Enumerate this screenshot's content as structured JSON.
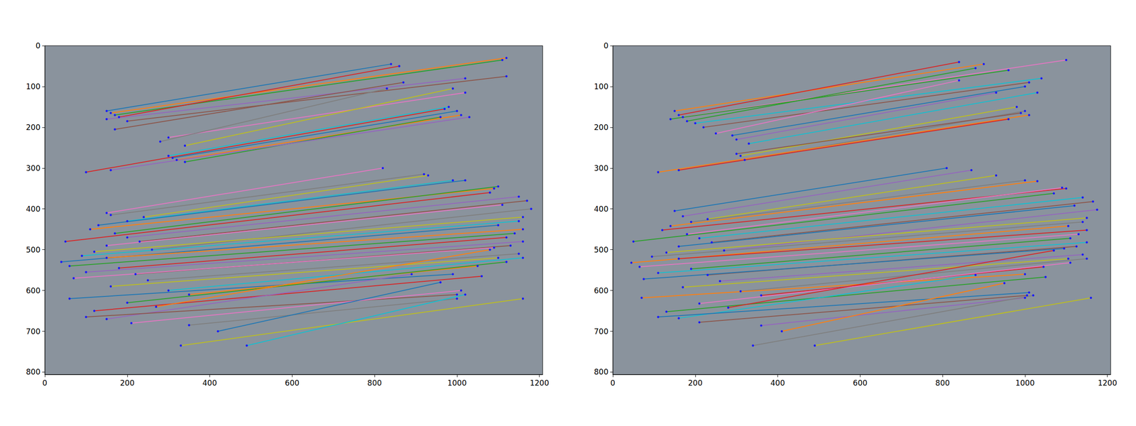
{
  "chart_data": [
    {
      "type": "line",
      "marker": "circle",
      "grid": false,
      "xlim": [
        0,
        1208
      ],
      "ylim": [
        806,
        0
      ],
      "xticks": [
        0,
        200,
        400,
        600,
        800,
        1000,
        1200
      ],
      "yticks": [
        0,
        100,
        200,
        300,
        400,
        500,
        600,
        700,
        800
      ],
      "segments": [
        [
          150,
          160,
          840,
          45
        ],
        [
          160,
          165,
          1120,
          30
        ],
        [
          170,
          170,
          1110,
          35
        ],
        [
          180,
          175,
          860,
          50
        ],
        [
          150,
          180,
          1020,
          80
        ],
        [
          200,
          185,
          1120,
          75
        ],
        [
          300,
          225,
          1020,
          115
        ],
        [
          280,
          235,
          830,
          105
        ],
        [
          340,
          245,
          990,
          105
        ],
        [
          300,
          270,
          980,
          150
        ],
        [
          310,
          275,
          1000,
          160
        ],
        [
          320,
          280,
          1010,
          170
        ],
        [
          340,
          285,
          960,
          175
        ],
        [
          100,
          310,
          970,
          155
        ],
        [
          160,
          305,
          1030,
          175
        ],
        [
          170,
          205,
          870,
          90
        ],
        [
          150,
          410,
          820,
          300
        ],
        [
          160,
          415,
          920,
          315
        ],
        [
          240,
          420,
          930,
          318
        ],
        [
          200,
          430,
          990,
          330
        ],
        [
          130,
          440,
          1020,
          330
        ],
        [
          110,
          450,
          1090,
          350
        ],
        [
          170,
          460,
          1100,
          345
        ],
        [
          50,
          480,
          1080,
          360
        ],
        [
          200,
          470,
          1150,
          370
        ],
        [
          230,
          480,
          1170,
          380
        ],
        [
          150,
          490,
          1110,
          390
        ],
        [
          260,
          500,
          1180,
          400
        ],
        [
          120,
          505,
          1160,
          420
        ],
        [
          90,
          515,
          1150,
          430
        ],
        [
          40,
          530,
          1100,
          440
        ],
        [
          150,
          520,
          1160,
          450
        ],
        [
          60,
          540,
          1140,
          460
        ],
        [
          180,
          545,
          1120,
          470
        ],
        [
          100,
          555,
          1160,
          480
        ],
        [
          220,
          560,
          1130,
          490
        ],
        [
          70,
          570,
          1090,
          495
        ],
        [
          250,
          575,
          1150,
          510
        ],
        [
          160,
          590,
          1100,
          520
        ],
        [
          300,
          600,
          1160,
          520
        ],
        [
          60,
          620,
          990,
          560
        ],
        [
          350,
          610,
          1050,
          540
        ],
        [
          200,
          630,
          1120,
          530
        ],
        [
          120,
          650,
          1060,
          565
        ],
        [
          150,
          670,
          890,
          560
        ],
        [
          100,
          665,
          1000,
          610
        ],
        [
          210,
          680,
          1010,
          600
        ],
        [
          350,
          685,
          1000,
          620
        ],
        [
          330,
          735,
          1160,
          620
        ],
        [
          490,
          735,
          1020,
          610
        ],
        [
          420,
          700,
          960,
          580
        ],
        [
          270,
          640,
          1080,
          500
        ]
      ],
      "colors": [
        "#1f77b4",
        "#ff7f0e",
        "#2ca02c",
        "#d62728",
        "#9467bd",
        "#8c564b",
        "#e377c2",
        "#7f7f7f",
        "#bcbd22",
        "#17becf",
        "#1f77b4",
        "#ff7f0e",
        "#2ca02c",
        "#d62728",
        "#9467bd",
        "#8c564b",
        "#e377c2",
        "#7f7f7f",
        "#bcbd22",
        "#17becf",
        "#1f77b4",
        "#ff7f0e",
        "#2ca02c",
        "#d62728",
        "#9467bd",
        "#8c564b",
        "#e377c2",
        "#7f7f7f",
        "#bcbd22",
        "#17becf",
        "#1f77b4",
        "#ff7f0e",
        "#2ca02c",
        "#d62728",
        "#9467bd",
        "#8c564b",
        "#e377c2",
        "#7f7f7f",
        "#bcbd22",
        "#17becf",
        "#1f77b4",
        "#ff7f0e",
        "#2ca02c",
        "#d62728",
        "#9467bd",
        "#8c564b",
        "#e377c2",
        "#7f7f7f",
        "#bcbd22",
        "#17becf",
        "#1f77b4",
        "#ff7f0e"
      ]
    },
    {
      "type": "line",
      "marker": "circle",
      "grid": false,
      "xlim": [
        0,
        1208
      ],
      "ylim": [
        806,
        0
      ],
      "xticks": [
        0,
        200,
        400,
        600,
        800,
        1000,
        1200
      ],
      "yticks": [
        0,
        100,
        200,
        300,
        400,
        500,
        600,
        700,
        800
      ],
      "segments": [
        [
          150,
          160,
          900,
          45
        ],
        [
          160,
          170,
          840,
          40
        ],
        [
          170,
          175,
          1100,
          35
        ],
        [
          140,
          180,
          960,
          60
        ],
        [
          200,
          190,
          1040,
          80
        ],
        [
          220,
          200,
          1010,
          90
        ],
        [
          290,
          220,
          1000,
          100
        ],
        [
          300,
          230,
          930,
          115
        ],
        [
          310,
          270,
          980,
          150
        ],
        [
          320,
          280,
          1000,
          160
        ],
        [
          110,
          310,
          1010,
          170
        ],
        [
          160,
          305,
          960,
          180
        ],
        [
          250,
          215,
          840,
          85
        ],
        [
          180,
          185,
          880,
          55
        ],
        [
          330,
          240,
          1030,
          115
        ],
        [
          300,
          265,
          990,
          165
        ],
        [
          150,
          405,
          810,
          300
        ],
        [
          170,
          418,
          870,
          305
        ],
        [
          230,
          425,
          930,
          318
        ],
        [
          190,
          432,
          1000,
          330
        ],
        [
          140,
          442,
          1030,
          332
        ],
        [
          120,
          452,
          1100,
          350
        ],
        [
          180,
          462,
          1090,
          348
        ],
        [
          50,
          480,
          1070,
          362
        ],
        [
          210,
          472,
          1140,
          372
        ],
        [
          240,
          482,
          1165,
          382
        ],
        [
          160,
          492,
          1120,
          392
        ],
        [
          270,
          502,
          1175,
          402
        ],
        [
          130,
          507,
          1150,
          422
        ],
        [
          95,
          517,
          1140,
          432
        ],
        [
          45,
          532,
          1105,
          442
        ],
        [
          160,
          522,
          1150,
          452
        ],
        [
          65,
          542,
          1130,
          462
        ],
        [
          190,
          547,
          1110,
          472
        ],
        [
          110,
          557,
          1150,
          482
        ],
        [
          230,
          562,
          1125,
          492
        ],
        [
          75,
          572,
          1095,
          497
        ],
        [
          260,
          577,
          1140,
          512
        ],
        [
          170,
          592,
          1105,
          522
        ],
        [
          310,
          602,
          1150,
          522
        ],
        [
          70,
          618,
          1000,
          560
        ],
        [
          360,
          612,
          1045,
          542
        ],
        [
          210,
          632,
          1110,
          532
        ],
        [
          130,
          652,
          1050,
          567
        ],
        [
          160,
          668,
          880,
          562
        ],
        [
          210,
          678,
          1005,
          612
        ],
        [
          110,
          665,
          1010,
          605
        ],
        [
          360,
          686,
          1000,
          618
        ],
        [
          490,
          735,
          1160,
          618
        ],
        [
          340,
          735,
          1020,
          612
        ],
        [
          410,
          700,
          950,
          582
        ],
        [
          280,
          642,
          1070,
          502
        ]
      ],
      "colors": [
        "#ff7f0e",
        "#d62728",
        "#e377c2",
        "#2ca02c",
        "#17becf",
        "#8c564b",
        "#1f77b4",
        "#9467bd",
        "#bcbd22",
        "#7f7f7f",
        "#ff7f0e",
        "#d62728",
        "#e377c2",
        "#2ca02c",
        "#17becf",
        "#8c564b",
        "#1f77b4",
        "#9467bd",
        "#bcbd22",
        "#7f7f7f",
        "#ff7f0e",
        "#d62728",
        "#e377c2",
        "#2ca02c",
        "#17becf",
        "#8c564b",
        "#1f77b4",
        "#9467bd",
        "#bcbd22",
        "#7f7f7f",
        "#ff7f0e",
        "#d62728",
        "#e377c2",
        "#2ca02c",
        "#17becf",
        "#8c564b",
        "#1f77b4",
        "#9467bd",
        "#bcbd22",
        "#7f7f7f",
        "#ff7f0e",
        "#d62728",
        "#e377c2",
        "#2ca02c",
        "#17becf",
        "#8c564b",
        "#1f77b4",
        "#9467bd",
        "#bcbd22",
        "#7f7f7f",
        "#ff7f0e",
        "#d62728"
      ]
    }
  ]
}
